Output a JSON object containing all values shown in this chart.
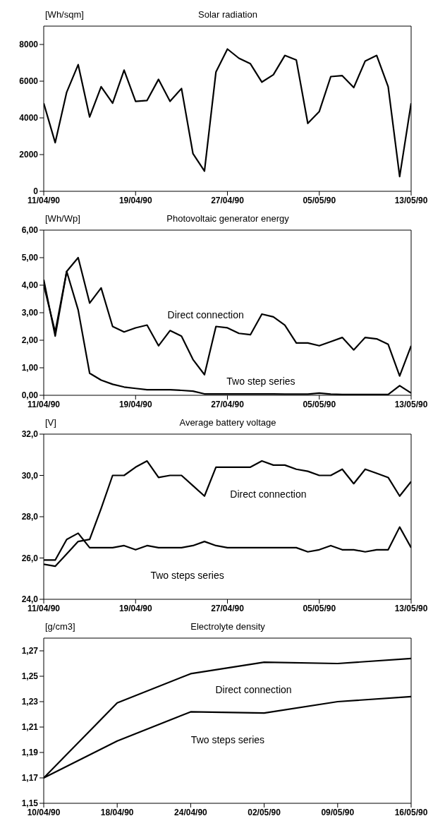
{
  "chart_data": [
    {
      "type": "line",
      "title": "Solar radiation",
      "ylabel": "[Wh/sqm]",
      "x": [
        "1990-04-11",
        "1990-04-12",
        "1990-04-13",
        "1990-04-14",
        "1990-04-15",
        "1990-04-16",
        "1990-04-17",
        "1990-04-18",
        "1990-04-19",
        "1990-04-20",
        "1990-04-21",
        "1990-04-22",
        "1990-04-23",
        "1990-04-24",
        "1990-04-25",
        "1990-04-26",
        "1990-04-27",
        "1990-04-28",
        "1990-04-29",
        "1990-04-30",
        "1990-05-01",
        "1990-05-02",
        "1990-05-03",
        "1990-05-04",
        "1990-05-05",
        "1990-05-06",
        "1990-05-07",
        "1990-05-08",
        "1990-05-09",
        "1990-05-10",
        "1990-05-11",
        "1990-05-12",
        "1990-05-13"
      ],
      "series": [
        {
          "color": "#000000",
          "values": [
            4800,
            2650,
            5400,
            6900,
            4050,
            5700,
            4800,
            6600,
            4900,
            4950,
            6100,
            4900,
            5600,
            2050,
            1100,
            6500,
            7750,
            7250,
            6950,
            5950,
            6350,
            7400,
            7150,
            3700,
            4350,
            6250,
            6300,
            5650,
            7100,
            7400,
            5700,
            800,
            4800
          ]
        }
      ],
      "xlim": [
        "1990-04-11",
        "1990-05-13"
      ],
      "xticks": [
        {
          "value": "1990-04-11",
          "label": "11/04/90"
        },
        {
          "value": "1990-04-19",
          "label": "19/04/90"
        },
        {
          "value": "1990-04-27",
          "label": "27/04/90"
        },
        {
          "value": "1990-05-05",
          "label": "05/05/90"
        },
        {
          "value": "1990-05-13",
          "label": "13/05/90"
        }
      ],
      "ylim": [
        0,
        9000
      ],
      "yticks": [
        0,
        2000,
        4000,
        6000,
        8000
      ],
      "grid": false,
      "marker": "none",
      "line_style": "solid"
    },
    {
      "type": "line",
      "title": "Photovoltaic generator energy",
      "ylabel": "[Wh/Wp]",
      "x": [
        "1990-04-11",
        "1990-04-12",
        "1990-04-13",
        "1990-04-14",
        "1990-04-15",
        "1990-04-16",
        "1990-04-17",
        "1990-04-18",
        "1990-04-19",
        "1990-04-20",
        "1990-04-21",
        "1990-04-22",
        "1990-04-23",
        "1990-04-24",
        "1990-04-25",
        "1990-04-26",
        "1990-04-27",
        "1990-04-28",
        "1990-04-29",
        "1990-04-30",
        "1990-05-01",
        "1990-05-02",
        "1990-05-03",
        "1990-05-04",
        "1990-05-05",
        "1990-05-06",
        "1990-05-07",
        "1990-05-08",
        "1990-05-09",
        "1990-05-10",
        "1990-05-11",
        "1990-05-12",
        "1990-05-13"
      ],
      "series": [
        {
          "name": "Direct connection",
          "color": "#000000",
          "values": [
            4.2,
            2.15,
            4.5,
            5.0,
            3.35,
            3.9,
            2.5,
            2.3,
            2.45,
            2.55,
            1.8,
            2.35,
            2.15,
            1.3,
            0.75,
            2.5,
            2.45,
            2.25,
            2.2,
            2.95,
            2.85,
            2.55,
            1.9,
            1.9,
            1.8,
            1.95,
            2.1,
            1.65,
            2.1,
            2.05,
            1.85,
            0.7,
            1.8
          ]
        },
        {
          "name": "Two step series",
          "color": "#000000",
          "values": [
            4.0,
            2.3,
            4.5,
            3.1,
            0.8,
            0.55,
            0.4,
            0.3,
            0.25,
            0.2,
            0.2,
            0.2,
            0.18,
            0.15,
            0.05,
            0.05,
            0.05,
            0.05,
            0.05,
            0.05,
            0.05,
            0.04,
            0.04,
            0.04,
            0.08,
            0.04,
            0.03,
            0.03,
            0.03,
            0.03,
            0.03,
            0.35,
            0.08
          ]
        }
      ],
      "xlim": [
        "1990-04-11",
        "1990-05-13"
      ],
      "xticks": [
        {
          "value": "1990-04-11",
          "label": "11/04/90"
        },
        {
          "value": "1990-04-19",
          "label": "19/04/90"
        },
        {
          "value": "1990-04-27",
          "label": "27/04/90"
        },
        {
          "value": "1990-05-05",
          "label": "05/05/90"
        },
        {
          "value": "1990-05-13",
          "label": "13/05/90"
        }
      ],
      "ylim": [
        0,
        6
      ],
      "yticks": [
        {
          "value": 0,
          "label": "0,00"
        },
        {
          "value": 1,
          "label": "1,00"
        },
        {
          "value": 2,
          "label": "2,00"
        },
        {
          "value": 3,
          "label": "3,00"
        },
        {
          "value": 4,
          "label": "4,00"
        },
        {
          "value": 5,
          "label": "5,00"
        },
        {
          "value": 6,
          "label": "6,00"
        }
      ],
      "grid": false,
      "marker": "none",
      "line_style": "solid"
    },
    {
      "type": "line",
      "title": "Average battery voltage",
      "ylabel": "[V]",
      "x": [
        "1990-04-11",
        "1990-04-12",
        "1990-04-13",
        "1990-04-14",
        "1990-04-15",
        "1990-04-16",
        "1990-04-17",
        "1990-04-18",
        "1990-04-19",
        "1990-04-20",
        "1990-04-21",
        "1990-04-22",
        "1990-04-23",
        "1990-04-24",
        "1990-04-25",
        "1990-04-26",
        "1990-04-27",
        "1990-04-28",
        "1990-04-29",
        "1990-04-30",
        "1990-05-01",
        "1990-05-02",
        "1990-05-03",
        "1990-05-04",
        "1990-05-05",
        "1990-05-06",
        "1990-05-07",
        "1990-05-08",
        "1990-05-09",
        "1990-05-10",
        "1990-05-11",
        "1990-05-12",
        "1990-05-13"
      ],
      "series": [
        {
          "name": "Direct connection",
          "color": "#000000",
          "values": [
            25.7,
            25.6,
            26.2,
            26.8,
            26.9,
            28.4,
            30.0,
            30.0,
            30.4,
            30.7,
            29.9,
            30.0,
            30.0,
            29.5,
            29.0,
            30.4,
            30.4,
            30.4,
            30.4,
            30.7,
            30.5,
            30.5,
            30.3,
            30.2,
            30.0,
            30.0,
            30.3,
            29.6,
            30.3,
            30.1,
            29.9,
            29.0,
            29.7
          ]
        },
        {
          "name": "Two steps series",
          "color": "#000000",
          "values": [
            25.9,
            25.9,
            26.9,
            27.2,
            26.5,
            26.5,
            26.5,
            26.6,
            26.4,
            26.6,
            26.5,
            26.5,
            26.5,
            26.6,
            26.8,
            26.6,
            26.5,
            26.5,
            26.5,
            26.5,
            26.5,
            26.5,
            26.5,
            26.3,
            26.4,
            26.6,
            26.4,
            26.4,
            26.3,
            26.4,
            26.4,
            27.5,
            26.5
          ]
        }
      ],
      "xlim": [
        "1990-04-11",
        "1990-05-13"
      ],
      "xticks": [
        {
          "value": "1990-04-11",
          "label": "11/04/90"
        },
        {
          "value": "1990-04-19",
          "label": "19/04/90"
        },
        {
          "value": "1990-04-27",
          "label": "27/04/90"
        },
        {
          "value": "1990-05-05",
          "label": "05/05/90"
        },
        {
          "value": "1990-05-13",
          "label": "13/05/90"
        }
      ],
      "ylim": [
        24,
        32
      ],
      "yticks": [
        {
          "value": 24,
          "label": "24,0"
        },
        {
          "value": 26,
          "label": "26,0"
        },
        {
          "value": 28,
          "label": "28,0"
        },
        {
          "value": 30,
          "label": "30,0"
        },
        {
          "value": 32,
          "label": "32,0"
        }
      ],
      "grid": false,
      "marker": "none",
      "line_style": "solid"
    },
    {
      "type": "line",
      "title": "Electrolyte density",
      "ylabel": "[g/cm3]",
      "categories": [
        "10/04/90",
        "18/04/90",
        "24/04/90",
        "02/05/90",
        "09/05/90",
        "16/05/90"
      ],
      "series": [
        {
          "name": "Direct connection",
          "color": "#000000",
          "values": [
            1.17,
            1.229,
            1.252,
            1.261,
            1.26,
            1.264
          ]
        },
        {
          "name": "Two steps series",
          "color": "#000000",
          "values": [
            1.17,
            1.199,
            1.222,
            1.221,
            1.23,
            1.234
          ]
        }
      ],
      "ylim": [
        1.15,
        1.28
      ],
      "yticks": [
        {
          "value": 1.15,
          "label": "1,15"
        },
        {
          "value": 1.17,
          "label": "1,17"
        },
        {
          "value": 1.19,
          "label": "1,19"
        },
        {
          "value": 1.21,
          "label": "1,21"
        },
        {
          "value": 1.23,
          "label": "1,23"
        },
        {
          "value": 1.25,
          "label": "1,25"
        },
        {
          "value": 1.27,
          "label": "1,27"
        }
      ],
      "grid": false,
      "marker": "none",
      "line_style": "solid"
    }
  ]
}
